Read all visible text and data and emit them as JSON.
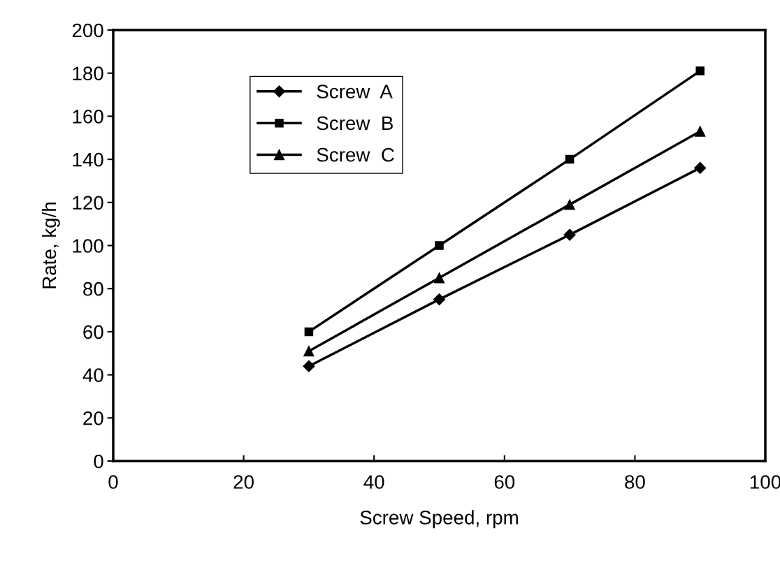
{
  "chart_data": {
    "type": "line",
    "xlabel": "Screw Speed, rpm",
    "ylabel": "Rate, kg/h",
    "x": [
      30,
      50,
      70,
      90
    ],
    "series": [
      {
        "name": "Screw  A",
        "color": "#000000",
        "marker": "diamond",
        "values": [
          44,
          75,
          105,
          136
        ]
      },
      {
        "name": "Screw  B",
        "color": "#000000",
        "marker": "square",
        "values": [
          60,
          100,
          140,
          181
        ]
      },
      {
        "name": "Screw  C",
        "color": "#000000",
        "marker": "triangle",
        "values": [
          51,
          85,
          119,
          153
        ]
      }
    ],
    "xlim": [
      0,
      100
    ],
    "xticks": [
      0,
      20,
      40,
      60,
      80,
      100
    ],
    "ylim": [
      0,
      200
    ],
    "yticks": [
      0,
      20,
      40,
      60,
      80,
      100,
      120,
      140,
      160,
      180,
      200
    ],
    "grid": false,
    "legend": "top left",
    "line_style": "solid"
  }
}
